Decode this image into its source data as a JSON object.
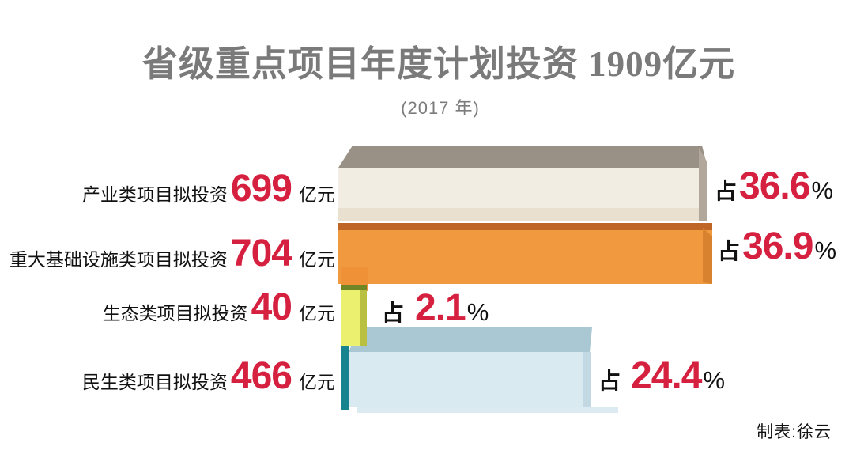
{
  "title": "省级重点项目年度计划投资 1909亿元",
  "subtitle": "(2017 年)",
  "credit": "制表:徐云",
  "colors": {
    "accent_red": "#d6203f",
    "title_gray": "#7a7a7a",
    "text_black": "#111111",
    "bar_industry_top": "#9a9186",
    "bar_industry_front": "#f2ede2",
    "bar_infrastructure_front": "#f0993f",
    "bar_infrastructure_edge": "#bf6626",
    "bar_ecology_front": "#ebf06e",
    "bar_ecology_edge": "#6f8526",
    "bar_livelihood_front": "#d9eaf0",
    "bar_livelihood_top": "#a9c8d4",
    "bar_livelihood_edge": "#17838f"
  },
  "rows": [
    {
      "label": "产业类项目拟投资",
      "value": "699",
      "unit": "亿元",
      "zhan": "占",
      "percent": "36.6",
      "sign": "%"
    },
    {
      "label": "重大基础设施类项目拟投资",
      "value": "704",
      "unit": "亿元",
      "zhan": "占",
      "percent": "36.9",
      "sign": "%"
    },
    {
      "label": "生态类项目拟投资",
      "value": "40",
      "unit": "亿元",
      "zhan": "占",
      "percent": "2.1",
      "sign": "%"
    },
    {
      "label": "民生类项目拟投资",
      "value": "466",
      "unit": "亿元",
      "zhan": "占",
      "percent": "24.4",
      "sign": "%"
    }
  ],
  "chart_data": {
    "type": "bar",
    "orientation": "horizontal",
    "title": "省级重点项目年度计划投资 1909亿元",
    "subtitle": "(2017 年)",
    "year": 2017,
    "total_value": 1909,
    "unit": "亿元",
    "categories": [
      "产业类项目拟投资",
      "重大基础设施类项目拟投资",
      "生态类项目拟投资",
      "民生类项目拟投资"
    ],
    "values": [
      699,
      704,
      40,
      466
    ],
    "percentages": [
      36.6,
      36.9,
      2.1,
      24.4
    ],
    "bar_colors": [
      "#f2ede2",
      "#f0993f",
      "#ebf06e",
      "#d9eaf0"
    ],
    "legend": "none",
    "grid": false,
    "credit": "制表:徐云"
  }
}
